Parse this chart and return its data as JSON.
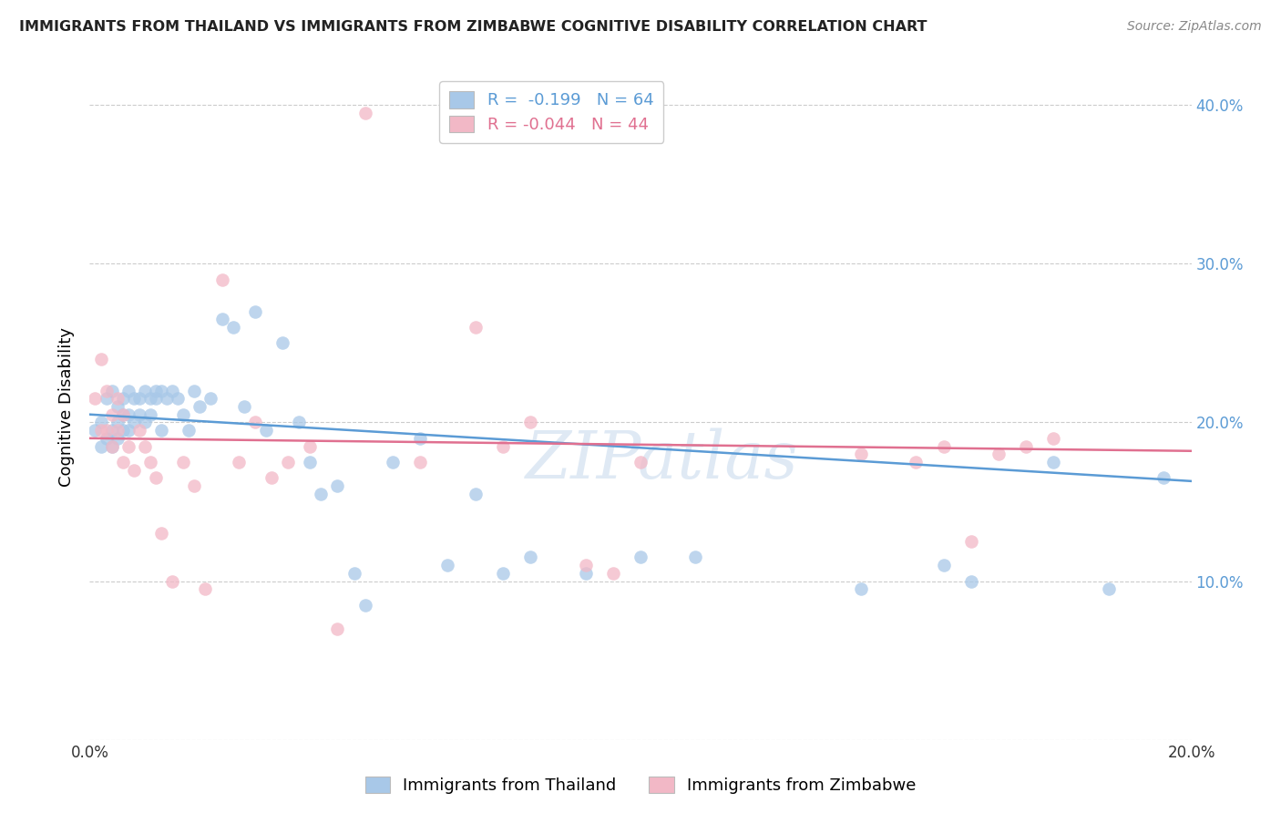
{
  "title": "IMMIGRANTS FROM THAILAND VS IMMIGRANTS FROM ZIMBABWE COGNITIVE DISABILITY CORRELATION CHART",
  "source": "Source: ZipAtlas.com",
  "ylabel": "Cognitive Disability",
  "thailand_color": "#a8c8e8",
  "thailand_line_color": "#5b9bd5",
  "zimbabwe_color": "#f2b8c6",
  "zimbabwe_line_color": "#e07090",
  "watermark": "ZIPatlas",
  "xlim": [
    0.0,
    0.2
  ],
  "ylim": [
    0.0,
    0.42
  ],
  "legend1_label1": "R =  -0.199   N = 64",
  "legend1_label2": "R = -0.044   N = 44",
  "legend2_label1": "Immigrants from Thailand",
  "legend2_label2": "Immigrants from Zimbabwe",
  "thailand_x": [
    0.001,
    0.002,
    0.002,
    0.003,
    0.003,
    0.004,
    0.004,
    0.004,
    0.005,
    0.005,
    0.005,
    0.006,
    0.006,
    0.006,
    0.007,
    0.007,
    0.007,
    0.008,
    0.008,
    0.009,
    0.009,
    0.01,
    0.01,
    0.011,
    0.011,
    0.012,
    0.012,
    0.013,
    0.013,
    0.014,
    0.015,
    0.016,
    0.017,
    0.018,
    0.019,
    0.02,
    0.022,
    0.024,
    0.026,
    0.028,
    0.03,
    0.032,
    0.035,
    0.038,
    0.04,
    0.042,
    0.045,
    0.048,
    0.05,
    0.055,
    0.06,
    0.065,
    0.07,
    0.075,
    0.08,
    0.09,
    0.1,
    0.11,
    0.14,
    0.155,
    0.16,
    0.175,
    0.185,
    0.195
  ],
  "thailand_y": [
    0.195,
    0.2,
    0.185,
    0.215,
    0.19,
    0.22,
    0.195,
    0.185,
    0.21,
    0.2,
    0.19,
    0.215,
    0.205,
    0.195,
    0.22,
    0.205,
    0.195,
    0.215,
    0.2,
    0.215,
    0.205,
    0.22,
    0.2,
    0.215,
    0.205,
    0.22,
    0.215,
    0.22,
    0.195,
    0.215,
    0.22,
    0.215,
    0.205,
    0.195,
    0.22,
    0.21,
    0.215,
    0.265,
    0.26,
    0.21,
    0.27,
    0.195,
    0.25,
    0.2,
    0.175,
    0.155,
    0.16,
    0.105,
    0.085,
    0.175,
    0.19,
    0.11,
    0.155,
    0.105,
    0.115,
    0.105,
    0.115,
    0.115,
    0.095,
    0.11,
    0.1,
    0.175,
    0.095,
    0.165
  ],
  "zimbabwe_x": [
    0.001,
    0.002,
    0.002,
    0.003,
    0.003,
    0.004,
    0.004,
    0.005,
    0.005,
    0.006,
    0.006,
    0.007,
    0.008,
    0.009,
    0.01,
    0.011,
    0.012,
    0.013,
    0.015,
    0.017,
    0.019,
    0.021,
    0.024,
    0.027,
    0.03,
    0.033,
    0.036,
    0.04,
    0.045,
    0.05,
    0.06,
    0.07,
    0.075,
    0.08,
    0.09,
    0.095,
    0.1,
    0.14,
    0.15,
    0.155,
    0.16,
    0.165,
    0.17,
    0.175
  ],
  "zimbabwe_y": [
    0.215,
    0.24,
    0.195,
    0.22,
    0.195,
    0.205,
    0.185,
    0.215,
    0.195,
    0.205,
    0.175,
    0.185,
    0.17,
    0.195,
    0.185,
    0.175,
    0.165,
    0.13,
    0.1,
    0.175,
    0.16,
    0.095,
    0.29,
    0.175,
    0.2,
    0.165,
    0.175,
    0.185,
    0.07,
    0.395,
    0.175,
    0.26,
    0.185,
    0.2,
    0.11,
    0.105,
    0.175,
    0.18,
    0.175,
    0.185,
    0.125,
    0.18,
    0.185,
    0.19
  ],
  "thai_line_x0": 0.0,
  "thai_line_x1": 0.2,
  "thai_line_y0": 0.205,
  "thai_line_y1": 0.163,
  "zim_line_x0": 0.0,
  "zim_line_x1": 0.2,
  "zim_line_y0": 0.19,
  "zim_line_y1": 0.182
}
